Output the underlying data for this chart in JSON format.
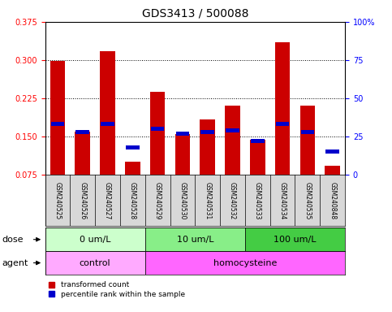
{
  "title": "GDS3413 / 500088",
  "samples": [
    "GSM240525",
    "GSM240526",
    "GSM240527",
    "GSM240528",
    "GSM240529",
    "GSM240530",
    "GSM240531",
    "GSM240532",
    "GSM240533",
    "GSM240534",
    "GSM240535",
    "GSM240848"
  ],
  "transformed_count": [
    0.298,
    0.16,
    0.318,
    0.1,
    0.237,
    0.155,
    0.183,
    0.21,
    0.143,
    0.335,
    0.21,
    0.092
  ],
  "percentile_rank_raw": [
    33,
    28,
    33,
    18,
    30,
    27,
    28,
    29,
    22,
    33,
    28,
    15
  ],
  "ylim_left": [
    0.075,
    0.375
  ],
  "ylim_right": [
    0,
    100
  ],
  "yticks_left": [
    0.075,
    0.15,
    0.225,
    0.3,
    0.375
  ],
  "yticks_right": [
    0,
    25,
    50,
    75,
    100
  ],
  "dose_groups": [
    {
      "label": "0 um/L",
      "start": 0,
      "end": 3,
      "color": "#ccffcc"
    },
    {
      "label": "10 um/L",
      "start": 4,
      "end": 7,
      "color": "#88ee88"
    },
    {
      "label": "100 um/L",
      "start": 8,
      "end": 11,
      "color": "#44cc44"
    }
  ],
  "agent_groups": [
    {
      "label": "control",
      "start": 0,
      "end": 3,
      "color": "#ffaaff"
    },
    {
      "label": "homocysteine",
      "start": 4,
      "end": 11,
      "color": "#ff66ff"
    }
  ],
  "bar_color_red": "#cc0000",
  "bar_color_blue": "#0000cc",
  "bar_width": 0.6,
  "title_fontsize": 10,
  "tick_fontsize": 7,
  "label_fontsize": 8,
  "sample_fontsize": 5.5
}
